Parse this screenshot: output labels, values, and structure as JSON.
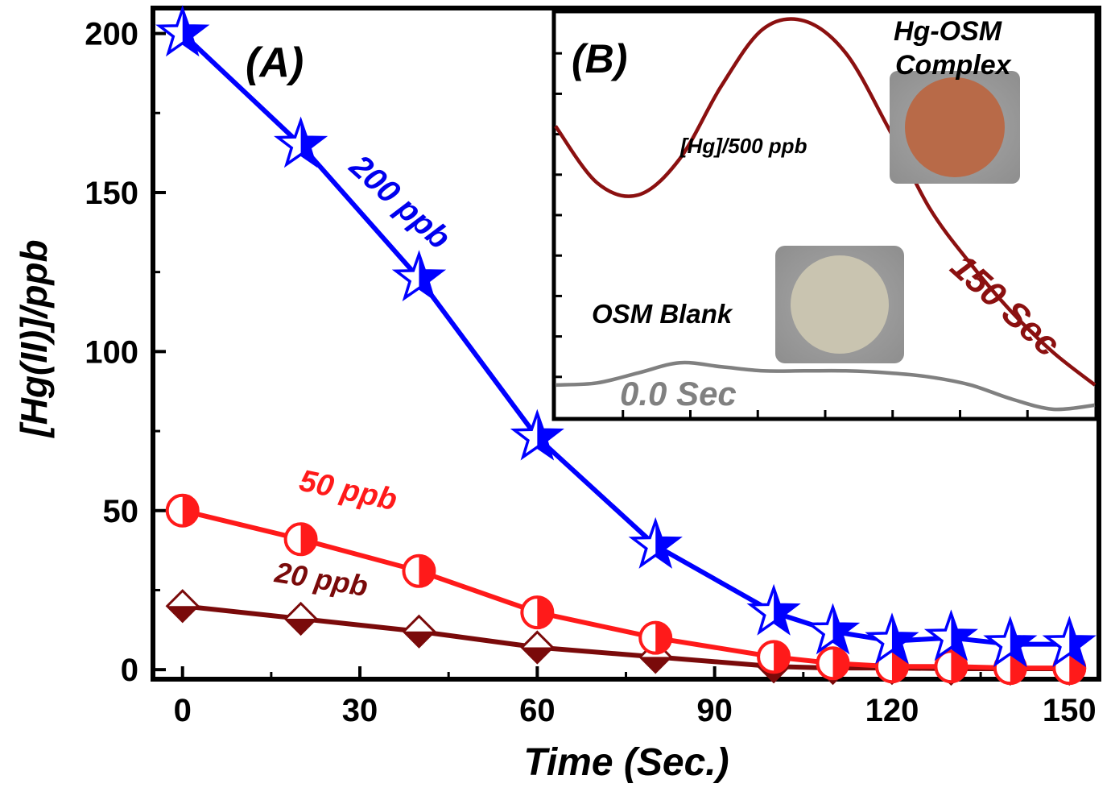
{
  "chart_data": [
    {
      "panel": "(A)",
      "type": "line",
      "xlabel": "Time (Sec.)",
      "ylabel": "[Hg(II)]/ppb",
      "xlim": [
        -5,
        155
      ],
      "ylim": [
        -3,
        208
      ],
      "x_ticks": [
        0,
        30,
        60,
        90,
        120,
        150
      ],
      "y_ticks": [
        0,
        50,
        100,
        150,
        200
      ],
      "x_tick_labels": [
        "0",
        "30",
        "60",
        "90",
        "120",
        "150"
      ],
      "y_tick_labels": [
        "0",
        "50",
        "100",
        "150",
        "200"
      ],
      "x": [
        0,
        20,
        40,
        60,
        80,
        100,
        110,
        120,
        130,
        140,
        150
      ],
      "series": [
        {
          "name": "200 ppb",
          "color": "#0000ff",
          "marker": "star",
          "values": [
            200,
            165,
            123,
            73,
            39,
            18,
            12,
            9,
            10,
            8,
            8
          ]
        },
        {
          "name": "50 ppb",
          "color": "#ff1a1a",
          "marker": "half-circle",
          "values": [
            50,
            41,
            31,
            18,
            10,
            4,
            2,
            1,
            1,
            0.5,
            0.5
          ]
        },
        {
          "name": "20 ppb",
          "color": "#7a0a0a",
          "marker": "diamond",
          "values": [
            20,
            16,
            12,
            7,
            4,
            1,
            0.5,
            0.5,
            0.3,
            0.3,
            0.3
          ]
        }
      ]
    },
    {
      "panel": "(B)",
      "type": "line",
      "series": [
        {
          "name": "150 Sec",
          "color": "#8b1010",
          "values": [
            0.72,
            0.58,
            0.55,
            0.64,
            0.82,
            0.96,
            0.98,
            0.9,
            0.72,
            0.52,
            0.38,
            0.26,
            0.16,
            0.08
          ]
        },
        {
          "name": "0.0 Sec",
          "color": "#808080",
          "values": [
            0.08,
            0.085,
            0.11,
            0.135,
            0.125,
            0.115,
            0.115,
            0.115,
            0.11,
            0.1,
            0.08,
            0.045,
            0.02,
            0.03
          ]
        }
      ]
    }
  ],
  "labels": {
    "panel_a": "(A)",
    "panel_b": "(B)",
    "s200": "200 ppb",
    "s50": "50 ppb",
    "s20": "20 ppb",
    "hg500": "[Hg]/500 ppb",
    "complex_line1": "Hg-OSM",
    "complex_line2": "Complex",
    "blank": "OSM Blank",
    "sec150": "150 Sec",
    "sec0": "0.0 Sec"
  }
}
